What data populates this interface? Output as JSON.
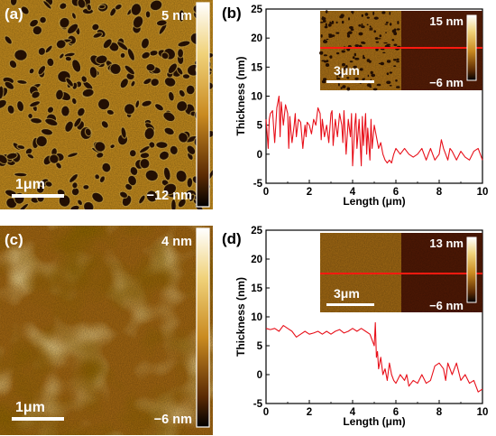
{
  "panels": {
    "a": {
      "label": "(a)",
      "scale_max": "5 nm",
      "scale_min": "−12 nm",
      "scale_bar": "1μm",
      "colors": {
        "pore": "#2a1204",
        "film": "#c98f1e",
        "ridge": "#ecc252"
      }
    },
    "c": {
      "label": "(c)",
      "scale_max": "4 nm",
      "scale_min": "−6 nm",
      "scale_bar": "1μm",
      "colors": {
        "base": "#a86a12",
        "light": "#d4a23a",
        "dark": "#6e3c08"
      }
    },
    "b": {
      "label": "(b)",
      "inset_max": "15 nm",
      "inset_min": "−6 nm",
      "inset_scale_bar": "3μm"
    },
    "d": {
      "label": "(d)",
      "inset_max": "13 nm",
      "inset_min": "−6 nm",
      "inset_scale_bar": "3μm"
    }
  },
  "chart_data": [
    {
      "type": "line",
      "panel": "b",
      "xlabel": "Length (μm)",
      "ylabel": "Thickness (nm)",
      "xlim": [
        0,
        10
      ],
      "ylim": [
        -5,
        25
      ],
      "xticks": [
        0,
        2,
        4,
        6,
        8,
        10
      ],
      "yticks": [
        -5,
        0,
        5,
        10,
        15,
        20,
        25
      ],
      "line_color": "#e8101a",
      "x": [
        0.0,
        0.1,
        0.15,
        0.2,
        0.3,
        0.4,
        0.5,
        0.6,
        0.65,
        0.7,
        0.8,
        0.9,
        1.0,
        1.05,
        1.1,
        1.15,
        1.2,
        1.3,
        1.35,
        1.4,
        1.5,
        1.6,
        1.7,
        1.8,
        1.85,
        1.9,
        2.0,
        2.1,
        2.2,
        2.3,
        2.4,
        2.5,
        2.55,
        2.6,
        2.7,
        2.8,
        2.9,
        3.0,
        3.05,
        3.1,
        3.2,
        3.3,
        3.4,
        3.5,
        3.55,
        3.6,
        3.7,
        3.8,
        3.9,
        3.95,
        4.0,
        4.1,
        4.15,
        4.2,
        4.3,
        4.4,
        4.45,
        4.5,
        4.6,
        4.65,
        4.7,
        4.8,
        4.85,
        4.9,
        5.0,
        5.1,
        5.2,
        5.3,
        5.4,
        5.5,
        5.6,
        5.7,
        5.8,
        5.9,
        6.0,
        6.2,
        6.4,
        6.6,
        6.8,
        7.0,
        7.2,
        7.4,
        7.5,
        7.6,
        7.8,
        8.0,
        8.1,
        8.2,
        8.3,
        8.4,
        8.5,
        8.6,
        8.8,
        9.0,
        9.2,
        9.4,
        9.6,
        9.8,
        10.0
      ],
      "y": [
        6,
        1,
        6,
        7,
        7.5,
        2,
        8,
        10,
        3,
        9,
        5,
        8.5,
        7,
        1,
        6.5,
        4,
        2,
        5,
        7,
        3,
        6,
        5.5,
        1,
        5,
        3,
        5.5,
        5,
        3.5,
        6,
        5,
        8,
        7,
        2.5,
        6,
        3,
        5,
        2,
        7,
        7.5,
        1.5,
        6,
        3,
        7,
        5,
        2,
        7.5,
        0,
        6,
        3,
        7,
        -2,
        5,
        7,
        1,
        6,
        -2,
        6.5,
        1.5,
        7,
        0,
        4.5,
        -1,
        6,
        1,
        5,
        3,
        1,
        2,
        0,
        -1,
        -1.5,
        -1,
        -1.5,
        0,
        1,
        0,
        1,
        0,
        -0.5,
        0,
        1,
        -1,
        0,
        1,
        -1,
        0,
        2.5,
        1,
        0,
        -1,
        1,
        0.5,
        -1,
        0.5,
        -0.5,
        -1,
        0.5,
        1,
        -1
      ]
    },
    {
      "type": "line",
      "panel": "d",
      "xlabel": "Length (μm)",
      "ylabel": "Thickness (nm)",
      "xlim": [
        0,
        10
      ],
      "ylim": [
        -5,
        25
      ],
      "xticks": [
        0,
        2,
        4,
        6,
        8,
        10
      ],
      "yticks": [
        -5,
        0,
        5,
        10,
        15,
        20,
        25
      ],
      "line_color": "#e8101a",
      "x": [
        0.0,
        0.2,
        0.4,
        0.6,
        0.8,
        1.0,
        1.2,
        1.4,
        1.6,
        1.8,
        2.0,
        2.2,
        2.4,
        2.6,
        2.8,
        3.0,
        3.2,
        3.4,
        3.6,
        3.8,
        4.0,
        4.2,
        4.4,
        4.6,
        4.8,
        5.0,
        5.05,
        5.1,
        5.15,
        5.2,
        5.3,
        5.4,
        5.5,
        5.6,
        5.7,
        5.8,
        5.9,
        6.0,
        6.2,
        6.4,
        6.5,
        6.6,
        6.8,
        7.0,
        7.2,
        7.4,
        7.6,
        7.8,
        8.0,
        8.2,
        8.3,
        8.4,
        8.6,
        8.8,
        9.0,
        9.2,
        9.4,
        9.6,
        9.8,
        10.0
      ],
      "y": [
        8,
        7.8,
        8,
        7.5,
        8.5,
        8,
        7.5,
        6.5,
        7,
        7.5,
        7,
        7.2,
        7.5,
        7,
        7.5,
        7,
        7.5,
        7.8,
        7.2,
        7.5,
        8,
        7.5,
        8,
        7.5,
        7,
        5,
        9,
        3,
        4,
        1,
        3,
        0,
        1,
        -1,
        2,
        0,
        -1,
        -1.5,
        0,
        -1,
        0,
        -2,
        -1,
        -1.5,
        0,
        -1.5,
        -1,
        1.5,
        2,
        1,
        -1,
        2,
        0,
        2,
        -1,
        0,
        -1.5,
        -1,
        -3,
        -2.5
      ]
    }
  ]
}
